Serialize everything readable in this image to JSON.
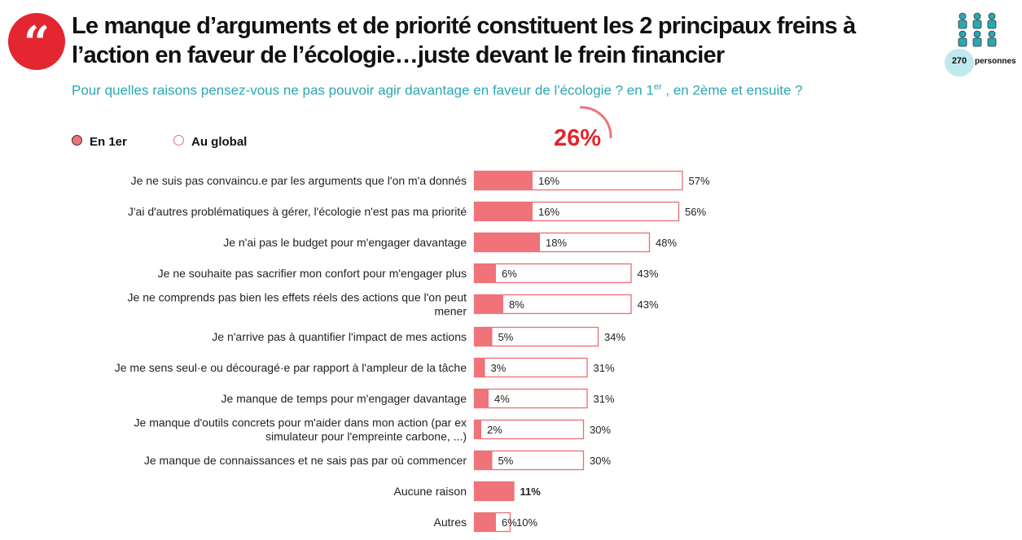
{
  "header": {
    "quote_mark": "“",
    "title": "Le manque d’arguments et de priorité constituent les 2 principaux freins à l’action en faveur de l’écologie…juste devant le frein financier",
    "subtitle_main": "Pour quelles raisons pensez-vous ne pas pouvoir agir davantage en faveur de l'écologie ? en 1",
    "subtitle_sup": "er",
    "subtitle_end": " , en 2ème et ensuite ?",
    "sample_count": "270",
    "sample_label": "personnes",
    "sample_icon": "people-group-icon"
  },
  "legend": {
    "first": "En 1er",
    "global": "Au global"
  },
  "highlight": {
    "value": "26%",
    "color": "#e3262f"
  },
  "colors": {
    "fill": "#ef7378",
    "border": "#ea6d75",
    "accent": "#2aa8b3"
  },
  "chart_data": {
    "type": "bar",
    "orientation": "horizontal",
    "categories": [
      "Je ne suis pas convaincu.e par les arguments que l'on m'a donnés",
      "J'ai d'autres problématiques à gérer, l'écologie n'est pas ma priorité",
      "Je n'ai pas le budget pour m'engager davantage",
      "Je ne souhaite pas sacrifier mon confort pour m'engager plus",
      "Je ne comprends pas bien les effets réels des actions que l'on peut mener",
      "Je n'arrive pas à quantifier l'impact de mes actions",
      "Je me sens seul·e ou découragé·e par rapport à l'ampleur de la tâche",
      "Je manque de temps pour m'engager davantage",
      "Je manque d'outils concrets pour m'aider dans mon action (par ex simulateur pour l'empreinte carbone, ...)",
      "Je manque de connaissances et ne sais pas par où commencer",
      "Aucune raison",
      "Autres"
    ],
    "series": [
      {
        "name": "En 1er",
        "values": [
          16,
          16,
          18,
          6,
          8,
          5,
          3,
          4,
          2,
          5,
          11,
          6
        ],
        "labels": [
          "16%",
          "16%",
          "18%",
          "6%",
          "8%",
          "5%",
          "3%",
          "4%",
          "2%",
          "5%",
          "",
          "6%"
        ]
      },
      {
        "name": "Au global",
        "values": [
          57,
          56,
          48,
          43,
          43,
          34,
          31,
          31,
          30,
          30,
          11,
          10
        ],
        "labels": [
          "57%",
          "56%",
          "48%",
          "43%",
          "43%",
          "34%",
          "31%",
          "31%",
          "30%",
          "30%",
          "11%",
          "10%"
        ]
      }
    ],
    "xlim": [
      0,
      57
    ]
  }
}
